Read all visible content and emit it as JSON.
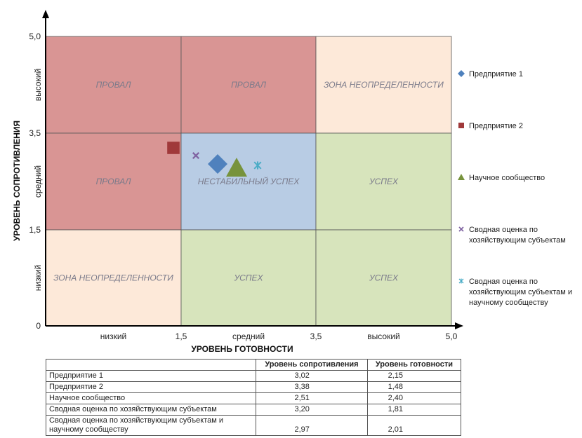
{
  "chart_data": {
    "type": "scatter",
    "xlabel": "УРОВЕНЬ ГОТОВНОСТИ",
    "ylabel": "УРОВЕНЬ СОПРОТИВЛЕНИЯ",
    "xlim": [
      0,
      5.0
    ],
    "ylim": [
      0,
      5.0
    ],
    "x_ticks": [
      "1,5",
      "3,5",
      "5,0"
    ],
    "y_ticks": [
      "0",
      "1,5",
      "3,5",
      "5,0"
    ],
    "x_zone_labels": [
      "низкий",
      "средний",
      "высокий"
    ],
    "y_zone_labels": [
      "низкий",
      "средний",
      "высокий"
    ],
    "zones": [
      {
        "label": "ПРОВАЛ",
        "x_range": [
          0,
          1.5
        ],
        "y_range": [
          3.5,
          5.0
        ],
        "color": "#d99594"
      },
      {
        "label": "ПРОВАЛ",
        "x_range": [
          1.5,
          3.5
        ],
        "y_range": [
          3.5,
          5.0
        ],
        "color": "#d99594"
      },
      {
        "label": "ЗОНА НЕОПРЕДЕЛЕННОСТИ",
        "x_range": [
          3.5,
          5.0
        ],
        "y_range": [
          3.5,
          5.0
        ],
        "color": "#fde9d9"
      },
      {
        "label": "ПРОВАЛ",
        "x_range": [
          0,
          1.5
        ],
        "y_range": [
          1.5,
          3.5
        ],
        "color": "#d99594"
      },
      {
        "label": "НЕСТАБИЛЬНЫЙ УСПЕХ",
        "x_range": [
          1.5,
          3.5
        ],
        "y_range": [
          1.5,
          3.5
        ],
        "color": "#b8cce4"
      },
      {
        "label": "УСПЕХ",
        "x_range": [
          3.5,
          5.0
        ],
        "y_range": [
          1.5,
          3.5
        ],
        "color": "#d7e4bc"
      },
      {
        "label": "ЗОНА НЕОПРЕДЕЛЕННОСТИ",
        "x_range": [
          0,
          1.5
        ],
        "y_range": [
          0,
          1.5
        ],
        "color": "#fde9d9"
      },
      {
        "label": "УСПЕХ",
        "x_range": [
          1.5,
          3.5
        ],
        "y_range": [
          0,
          1.5
        ],
        "color": "#d7e4bc"
      },
      {
        "label": "УСПЕХ",
        "x_range": [
          3.5,
          5.0
        ],
        "y_range": [
          0,
          1.5
        ],
        "color": "#d7e4bc"
      }
    ],
    "series": [
      {
        "name": "Предприятие 1",
        "x": 2.15,
        "y": 3.02,
        "marker": "diamond",
        "color": "#4f81bd"
      },
      {
        "name": "Предприятие 2",
        "x": 1.48,
        "y": 3.38,
        "marker": "square",
        "color": "#a0393a"
      },
      {
        "name": "Научное сообщество",
        "x": 2.4,
        "y": 2.51,
        "marker": "triangle",
        "color": "#77933c"
      },
      {
        "name": "Сводная оценка по хозяйствующим субъектам",
        "x": 1.81,
        "y": 3.2,
        "marker": "x",
        "color": "#8064a2"
      },
      {
        "name": "Сводная оценка по хозяйствующим субъектам и научному сообществу",
        "x": 2.01,
        "y": 2.97,
        "marker": "star",
        "color": "#4bacc6"
      }
    ],
    "legend_position": "right",
    "grid": true
  },
  "table": {
    "headers": [
      "",
      "Уровень сопротивления",
      "Уровень готовности"
    ],
    "rows": [
      [
        "Предприятие 1",
        "3,02",
        "2,15"
      ],
      [
        "Предприятие 2",
        "3,38",
        "1,48"
      ],
      [
        "Научное сообщество",
        "2,51",
        "2,40"
      ],
      [
        "Сводная оценка по хозяйствующим субъектам",
        "3,20",
        "1,81"
      ],
      [
        "Сводная оценка по хозяйствующим субъектам и научному сообществу",
        "2,97",
        "2,01"
      ]
    ]
  }
}
